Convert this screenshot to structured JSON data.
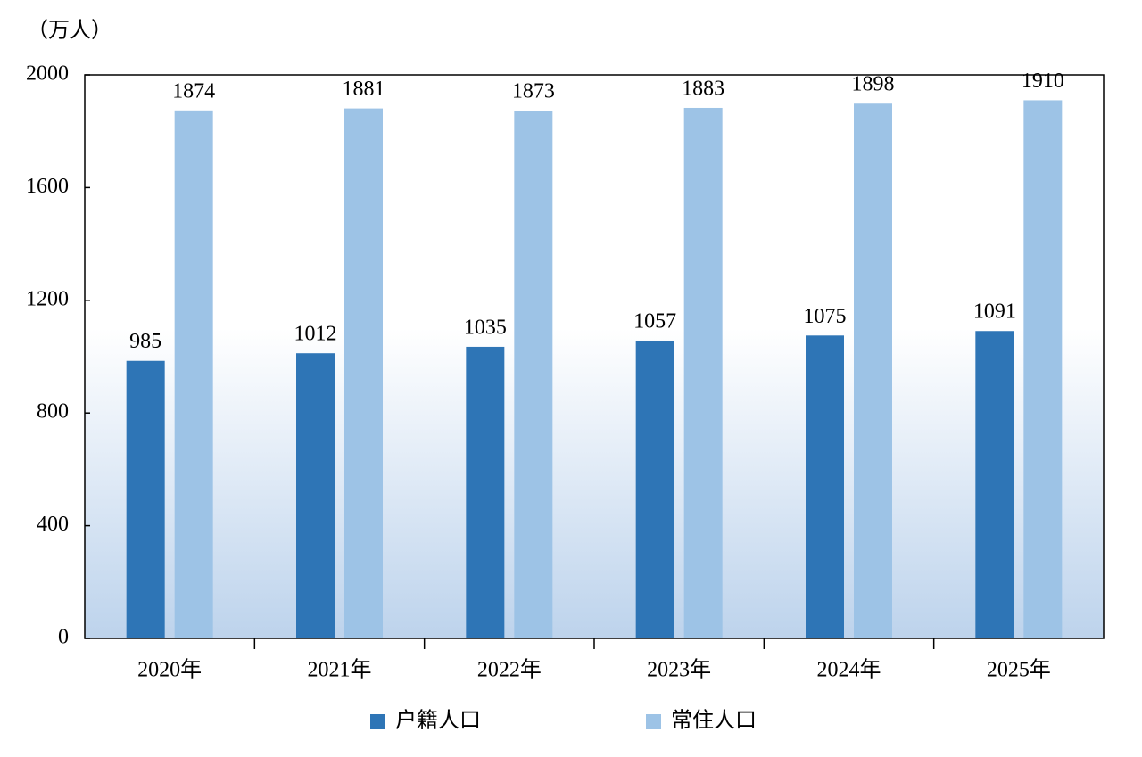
{
  "chart_data": {
    "type": "bar",
    "y_label": "（万人）",
    "categories": [
      "2020年",
      "2021年",
      "2022年",
      "2023年",
      "2024年",
      "2025年"
    ],
    "series": [
      {
        "name": "户籍人口",
        "color": "#2e75b6",
        "values": [
          985,
          1012,
          1035,
          1057,
          1075,
          1091
        ]
      },
      {
        "name": "常住人口",
        "color": "#9dc3e6",
        "values": [
          1874,
          1881,
          1873,
          1883,
          1898,
          1910
        ]
      }
    ],
    "ylim": [
      0,
      2000
    ],
    "yticks": [
      0,
      400,
      800,
      1200,
      1600,
      2000
    ],
    "grid": false
  }
}
